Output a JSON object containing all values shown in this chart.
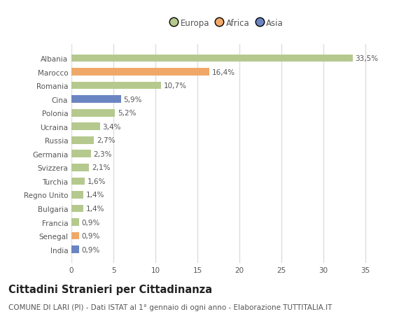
{
  "categories": [
    "Albania",
    "Marocco",
    "Romania",
    "Cina",
    "Polonia",
    "Ucraina",
    "Russia",
    "Germania",
    "Svizzera",
    "Turchia",
    "Regno Unito",
    "Bulgaria",
    "Francia",
    "Senegal",
    "India"
  ],
  "values": [
    33.5,
    16.4,
    10.7,
    5.9,
    5.2,
    3.4,
    2.7,
    2.3,
    2.1,
    1.6,
    1.4,
    1.4,
    0.9,
    0.9,
    0.9
  ],
  "labels": [
    "33,5%",
    "16,4%",
    "10,7%",
    "5,9%",
    "5,2%",
    "3,4%",
    "2,7%",
    "2,3%",
    "2,1%",
    "1,6%",
    "1,4%",
    "1,4%",
    "0,9%",
    "0,9%",
    "0,9%"
  ],
  "continent": [
    "Europa",
    "Africa",
    "Europa",
    "Asia",
    "Europa",
    "Europa",
    "Europa",
    "Europa",
    "Europa",
    "Europa",
    "Europa",
    "Europa",
    "Europa",
    "Africa",
    "Asia"
  ],
  "colors": {
    "Europa": "#b5c98e",
    "Africa": "#f0a868",
    "Asia": "#6b85c2"
  },
  "legend_items": [
    "Europa",
    "Africa",
    "Asia"
  ],
  "xlim": [
    0,
    37
  ],
  "xticks": [
    0,
    5,
    10,
    15,
    20,
    25,
    30,
    35
  ],
  "title": "Cittadini Stranieri per Cittadinanza",
  "subtitle": "COMUNE DI LARI (PI) - Dati ISTAT al 1° gennaio di ogni anno - Elaborazione TUTTITALIA.IT",
  "bg_color": "#ffffff",
  "plot_bg_color": "#ffffff",
  "grid_color": "#dddddd",
  "bar_height": 0.55,
  "title_fontsize": 10.5,
  "subtitle_fontsize": 7.5,
  "label_fontsize": 7.5,
  "tick_fontsize": 7.5,
  "legend_fontsize": 8.5
}
